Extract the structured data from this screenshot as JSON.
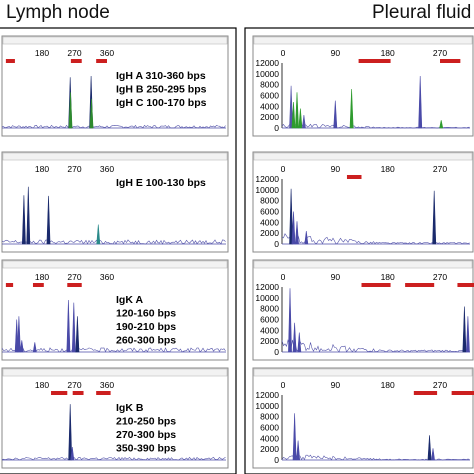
{
  "columns": [
    {
      "title": "Lymph node",
      "panels": [
        {
          "x_ticks": [
            "180",
            "270",
            "360"
          ],
          "y_ticks": [],
          "annotation": [
            "IgH A 310-360 bps",
            "IgH B 250-295 bps",
            "IgH C 100-170 bps"
          ],
          "size_bars": [
            [
              80,
              105
            ],
            [
              260,
              290
            ],
            [
              330,
              360
            ]
          ],
          "peaks": [
            {
              "x": 258,
              "h": 0.78,
              "c": "#1a2a6c"
            },
            {
              "x": 259,
              "h": 0.55,
              "c": "#2e8b2e"
            },
            {
              "x": 316,
              "h": 0.8,
              "c": "#1a2a6c"
            },
            {
              "x": 317,
              "h": 0.45,
              "c": "#2e8b2e"
            }
          ],
          "noise": 0.02
        },
        {
          "x_ticks": [
            "180",
            "270",
            "360"
          ],
          "y_ticks": [],
          "annotation": [
            "IgH E 100-130 bps"
          ],
          "size_bars": [],
          "peaks": [
            {
              "x": 130,
              "h": 0.75,
              "c": "#1a2a6c"
            },
            {
              "x": 142,
              "h": 0.88,
              "c": "#1a2a6c"
            },
            {
              "x": 198,
              "h": 0.74,
              "c": "#1a2a6c"
            },
            {
              "x": 336,
              "h": 0.3,
              "c": "#2a8a8a"
            }
          ],
          "noise": 0.03
        },
        {
          "x_ticks": [
            "180",
            "270",
            "360"
          ],
          "y_ticks": [],
          "annotation": [
            "IgK A",
            "120-160 bps",
            "190-210 bps",
            "260-300 bps"
          ],
          "size_bars": [
            [
              80,
              100
            ],
            [
              155,
              185
            ],
            [
              250,
              290
            ]
          ],
          "peaks": [
            {
              "x": 110,
              "h": 0.5,
              "c": "#4a4aa8"
            },
            {
              "x": 116,
              "h": 0.55,
              "c": "#4a4aa8"
            },
            {
              "x": 124,
              "h": 0.18,
              "c": "#4a4aa8"
            },
            {
              "x": 160,
              "h": 0.15,
              "c": "#4a4aa8"
            },
            {
              "x": 253,
              "h": 0.8,
              "c": "#4a4aa8"
            },
            {
              "x": 268,
              "h": 0.76,
              "c": "#4a4aa8"
            },
            {
              "x": 278,
              "h": 0.55,
              "c": "#1a2a6c"
            }
          ],
          "noise": 0.03
        },
        {
          "x_ticks": [
            "180",
            "270",
            "360"
          ],
          "y_ticks": [],
          "annotation": [
            "IgK B",
            "210-250 bps",
            "270-300 bps",
            "350-390 bps"
          ],
          "size_bars": [
            [
              205,
              250
            ],
            [
              265,
              295
            ],
            [
              330,
              370
            ]
          ],
          "peaks": [
            {
              "x": 258,
              "h": 0.86,
              "c": "#1a2a6c"
            },
            {
              "x": 264,
              "h": 0.2,
              "c": "#4a4aa8"
            }
          ],
          "noise": 0.02
        }
      ]
    },
    {
      "title": "Pleural fluid",
      "panels": [
        {
          "x_ticks": [
            "0",
            "90",
            "180",
            "270"
          ],
          "y_ticks": [
            "12000",
            "10000",
            "8000",
            "6000",
            "4000",
            "2000",
            "0"
          ],
          "annotation": [],
          "size_bars": [
            [
              130,
              185
            ],
            [
              270,
              305
            ],
            [
              330,
              360
            ]
          ],
          "peaks": [
            {
              "x": 14,
              "h": 0.65,
              "c": "#5555aa"
            },
            {
              "x": 18,
              "h": 0.4,
              "c": "#2e9b2e"
            },
            {
              "x": 24,
              "h": 0.55,
              "c": "#2e9b2e"
            },
            {
              "x": 30,
              "h": 0.3,
              "c": "#2e9b2e"
            },
            {
              "x": 36,
              "h": 0.2,
              "c": "#5555aa"
            },
            {
              "x": 90,
              "h": 0.42,
              "c": "#4a4aa8"
            },
            {
              "x": 118,
              "h": 0.6,
              "c": "#2e9b2e"
            },
            {
              "x": 236,
              "h": 0.8,
              "c": "#4a4aa8"
            },
            {
              "x": 272,
              "h": 0.12,
              "c": "#2e9b2e"
            }
          ],
          "noise": 0.04
        },
        {
          "x_ticks": [
            "0",
            "90",
            "180",
            "270"
          ],
          "y_ticks": [
            "12000",
            "10000",
            "8000",
            "6000",
            "4000",
            "2000",
            "0"
          ],
          "annotation": [],
          "size_bars": [
            [
              110,
              135
            ]
          ],
          "peaks": [
            {
              "x": 14,
              "h": 0.85,
              "c": "#1a2a6c"
            },
            {
              "x": 18,
              "h": 0.5,
              "c": "#4a4aa8"
            },
            {
              "x": 24,
              "h": 0.35,
              "c": "#4a4aa8"
            },
            {
              "x": 40,
              "h": 0.2,
              "c": "#4a4aa8"
            },
            {
              "x": 260,
              "h": 0.82,
              "c": "#1a2a6c"
            }
          ],
          "noise": 0.08
        },
        {
          "x_ticks": [
            "0",
            "90",
            "180",
            "270"
          ],
          "y_ticks": [
            "12000",
            "10000",
            "8000",
            "6000",
            "4000",
            "2000",
            "0"
          ],
          "annotation": [],
          "size_bars": [
            [
              135,
              185
            ],
            [
              210,
              260
            ],
            [
              300,
              335
            ]
          ],
          "peaks": [
            {
              "x": 12,
              "h": 0.98,
              "c": "#4a4aa8"
            },
            {
              "x": 20,
              "h": 0.45,
              "c": "#4a4aa8"
            },
            {
              "x": 28,
              "h": 0.3,
              "c": "#4a4aa8"
            },
            {
              "x": 312,
              "h": 0.7,
              "c": "#1a2a6c"
            },
            {
              "x": 318,
              "h": 0.55,
              "c": "#4a4aa8"
            }
          ],
          "noise": 0.1
        },
        {
          "x_ticks": [
            "0",
            "90",
            "180",
            "270"
          ],
          "y_ticks": [
            "12000",
            "10000",
            "8000",
            "6000",
            "4000",
            "2000",
            "0"
          ],
          "annotation": [],
          "size_bars": [
            [
              225,
              265
            ],
            [
              290,
              330
            ]
          ],
          "peaks": [
            {
              "x": 20,
              "h": 0.72,
              "c": "#4a4aa8"
            },
            {
              "x": 26,
              "h": 0.3,
              "c": "#4a4aa8"
            },
            {
              "x": 252,
              "h": 0.38,
              "c": "#1a2a6c"
            },
            {
              "x": 258,
              "h": 0.18,
              "c": "#4a4aa8"
            }
          ],
          "noise": 0.05
        }
      ]
    }
  ],
  "chart_data": [
    {
      "type": "line",
      "title": "Lymph node",
      "panels": [
        {
          "marker": "IgH",
          "labels": [
            "IgH A 310-360 bps",
            "IgH B 250-295 bps",
            "IgH C 100-170 bps"
          ],
          "x_ticks": [
            180,
            270,
            360
          ]
        },
        {
          "marker": "IgH E",
          "labels": [
            "IgH E 100-130 bps"
          ],
          "x_ticks": [
            180,
            270,
            360
          ]
        },
        {
          "marker": "IgK A",
          "labels": [
            "120-160 bps",
            "190-210 bps",
            "260-300 bps"
          ],
          "x_ticks": [
            180,
            270,
            360
          ]
        },
        {
          "marker": "IgK B",
          "labels": [
            "210-250 bps",
            "270-300 bps",
            "350-390 bps"
          ],
          "x_ticks": [
            180,
            270,
            360
          ]
        }
      ]
    },
    {
      "type": "line",
      "title": "Pleural fluid",
      "ylim": [
        0,
        12000
      ],
      "y_ticks": [
        0,
        2000,
        4000,
        6000,
        8000,
        10000,
        12000
      ],
      "x_ticks": [
        0,
        90,
        180,
        270
      ]
    }
  ]
}
